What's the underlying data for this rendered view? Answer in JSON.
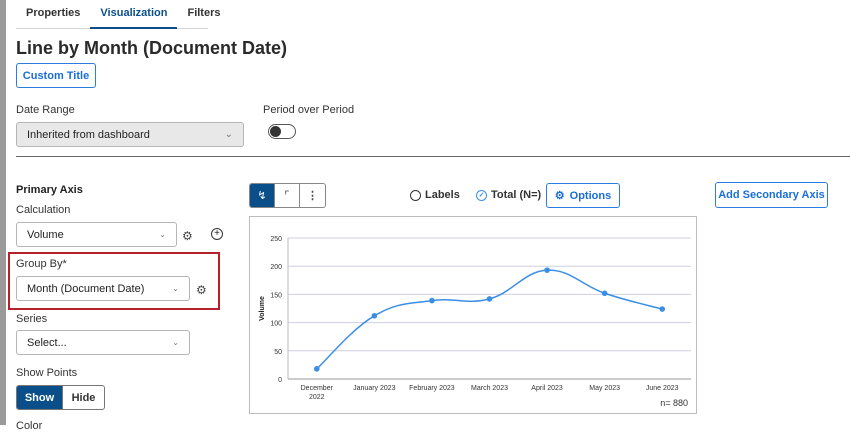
{
  "tabs": [
    {
      "label": "Properties",
      "active": false
    },
    {
      "label": "Visualization",
      "active": true
    },
    {
      "label": "Filters",
      "active": false
    }
  ],
  "page_title": "Line by Month (Document Date)",
  "custom_title_label": "Custom Title",
  "date_range": {
    "label": "Date Range",
    "value": "Inherited from dashboard"
  },
  "period_over_period": {
    "label": "Period over Period",
    "enabled": false
  },
  "primary_axis": {
    "heading": "Primary Axis",
    "calculation": {
      "label": "Calculation",
      "value": "Volume"
    },
    "group_by": {
      "label": "Group By*",
      "value": "Month (Document Date)"
    },
    "series": {
      "label": "Series",
      "placeholder": "Select..."
    },
    "show_points": {
      "label": "Show Points",
      "options": [
        "Show",
        "Hide"
      ],
      "selected": "Show"
    },
    "next_label": "Color"
  },
  "toolbar": {
    "labels_option": "Labels",
    "labels_checked": false,
    "total_option": "Total (N=)",
    "total_checked": true,
    "options_label": "Options",
    "add_secondary_label": "Add Secondary Axis"
  },
  "colors": {
    "accent": "#0b4f8a",
    "line": "#3a8ee6",
    "highlight": "#b5202a"
  },
  "chart_data": {
    "type": "line",
    "categories": [
      "December 2022",
      "January 2023",
      "February 2023",
      "March 2023",
      "April 2023",
      "May 2023",
      "June 2023"
    ],
    "category_lines": [
      [
        "December",
        "2022"
      ],
      [
        "January 2023"
      ],
      [
        "February 2023"
      ],
      [
        "March 2023"
      ],
      [
        "April 2023"
      ],
      [
        "May 2023"
      ],
      [
        "June 2023"
      ]
    ],
    "series": [
      {
        "values": [
          18,
          112,
          139,
          142,
          193,
          152,
          124
        ]
      }
    ],
    "ylabel": "Volume",
    "ylim": [
      0,
      250
    ],
    "yticks": [
      0,
      50,
      100,
      150,
      200,
      250
    ],
    "grid": true,
    "smooth": true,
    "show_points": true,
    "total_label": "n= 880"
  }
}
